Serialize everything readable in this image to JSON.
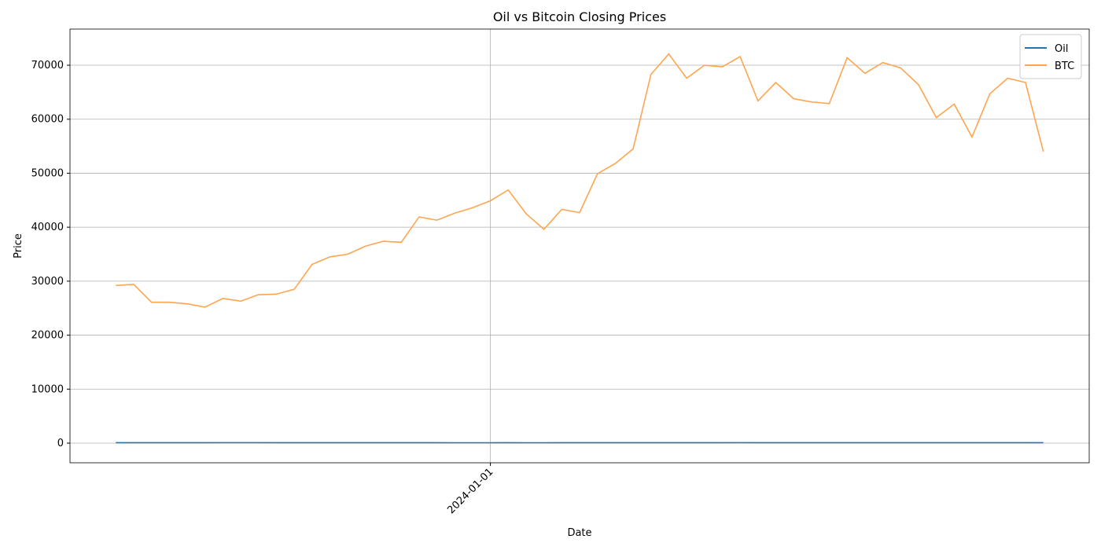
{
  "chart_data": {
    "type": "line",
    "title": "Oil vs Bitcoin Closing Prices",
    "x_label": "Date",
    "y_label": "Price",
    "x": [
      "2023-08-07",
      "2023-08-14",
      "2023-08-21",
      "2023-08-28",
      "2023-09-04",
      "2023-09-11",
      "2023-09-18",
      "2023-09-25",
      "2023-10-02",
      "2023-10-09",
      "2023-10-16",
      "2023-10-23",
      "2023-10-30",
      "2023-11-06",
      "2023-11-13",
      "2023-11-20",
      "2023-11-27",
      "2023-12-04",
      "2023-12-11",
      "2023-12-18",
      "2023-12-25",
      "2024-01-01",
      "2024-01-08",
      "2024-01-15",
      "2024-01-22",
      "2024-01-29",
      "2024-02-05",
      "2024-02-12",
      "2024-02-19",
      "2024-02-26",
      "2024-03-04",
      "2024-03-11",
      "2024-03-18",
      "2024-03-25",
      "2024-04-01",
      "2024-04-08",
      "2024-04-15",
      "2024-04-22",
      "2024-04-29",
      "2024-05-06",
      "2024-05-13",
      "2024-05-20",
      "2024-05-27",
      "2024-06-03",
      "2024-06-10",
      "2024-06-17",
      "2024-06-24",
      "2024-07-01",
      "2024-07-08",
      "2024-07-15",
      "2024-07-22",
      "2024-07-29",
      "2024-08-05"
    ],
    "series": [
      {
        "name": "Oil",
        "color": "#1f77b4",
        "values": [
          81,
          82,
          80,
          83,
          87,
          88,
          90,
          91,
          89,
          87,
          85,
          88,
          82,
          80,
          78,
          77,
          77,
          75,
          74,
          72,
          73,
          71,
          76,
          73,
          73,
          75,
          75,
          77,
          78,
          80,
          82,
          84,
          83,
          86,
          86,
          90,
          85,
          83,
          82,
          78,
          78,
          79,
          78,
          74,
          78,
          79,
          81,
          83,
          86,
          83,
          83,
          79,
          74
        ]
      },
      {
        "name": "BTC",
        "color": "#ffa54f",
        "values": [
          29200,
          29400,
          26100,
          26100,
          25800,
          25200,
          26800,
          26300,
          27500,
          27600,
          28500,
          33100,
          34500,
          35000,
          36500,
          37400,
          37200,
          41900,
          41300,
          42600,
          43600,
          44900,
          46900,
          42500,
          39600,
          43300,
          42700,
          49900,
          51800,
          54500,
          68300,
          72100,
          67600,
          70000,
          69700,
          71600,
          63400,
          66800,
          63800,
          63200,
          62900,
          71400,
          68500,
          70500,
          69500,
          66400,
          60300,
          62800,
          56700,
          64700,
          67600,
          66800,
          54000
        ]
      }
    ],
    "xlim": [
      "2023-07-20",
      "2024-08-23"
    ],
    "xticks": [
      "2024-01-01"
    ],
    "ylim": [
      -3640,
      76700
    ],
    "yticks": [
      0,
      10000,
      20000,
      30000,
      40000,
      50000,
      60000,
      70000
    ],
    "grid": true,
    "legend": "upper right"
  }
}
